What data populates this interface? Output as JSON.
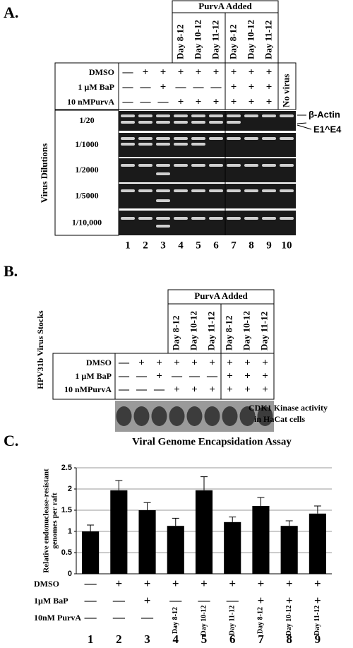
{
  "panel_a": {
    "label": "A.",
    "header": "PurvA Added",
    "days": [
      "Day 8-12",
      "Day 10-12",
      "Day 11-12",
      "Day 8-12",
      "Day 10-12",
      "Day 11-12"
    ],
    "no_virus": "No virus",
    "rows": [
      {
        "label": "DMSO",
        "marks": [
          "—",
          "+",
          "+",
          "+",
          "+",
          "+",
          "+",
          "+",
          "+"
        ]
      },
      {
        "label": "1 µM BaP",
        "marks": [
          "—",
          "—",
          "+",
          "—",
          "—",
          "—",
          "+",
          "+",
          "+"
        ]
      },
      {
        "label": "10 nMPurvA",
        "marks": [
          "—",
          "—",
          "—",
          "+",
          "+",
          "+",
          "+",
          "+",
          "+"
        ]
      }
    ],
    "side_label": "Virus Dilutions",
    "dilutions": [
      "1/20",
      "1/1000",
      "1/2000",
      "1/5000",
      "1/10,000"
    ],
    "annotations": [
      "β-Actin",
      "E1^E4"
    ],
    "lanes": [
      "1",
      "2",
      "3",
      "4",
      "5",
      "6",
      "7",
      "8",
      "9",
      "10"
    ]
  },
  "panel_b": {
    "label": "B.",
    "header": "PurvA Added",
    "days": [
      "Day 8-12",
      "Day 10-12",
      "Day 11-12",
      "Day 8-12",
      "Day 10-12",
      "Day 11-12"
    ],
    "rows": [
      {
        "label": "DMSO",
        "marks": [
          "—",
          "+",
          "+",
          "+",
          "+",
          "+",
          "+",
          "+",
          "+"
        ]
      },
      {
        "label": "1 µM BaP",
        "marks": [
          "—",
          "—",
          "+",
          "—",
          "—",
          "—",
          "+",
          "+",
          "+"
        ]
      },
      {
        "label": "10 nMPurvA",
        "marks": [
          "—",
          "—",
          "—",
          "+",
          "+",
          "+",
          "+",
          "+",
          "+"
        ]
      }
    ],
    "side_label": "HPV31b Virus Stocks",
    "caption": [
      "CDK1 Kinase activity",
      "in HaCat cells"
    ]
  },
  "chart_data": {
    "type": "bar",
    "label": "C.",
    "title": "Viral Genome Encapsidation Assay",
    "ylabel": [
      "Relative endonuclease-resistant",
      "genomes per raft"
    ],
    "categories": [
      "1",
      "2",
      "3",
      "4",
      "5",
      "6",
      "7",
      "8",
      "9"
    ],
    "values": [
      1.0,
      1.97,
      1.5,
      1.13,
      1.97,
      1.22,
      1.6,
      1.13,
      1.42
    ],
    "errors": [
      0.15,
      0.23,
      0.18,
      0.18,
      0.32,
      0.12,
      0.2,
      0.12,
      0.18
    ],
    "color": "#000000",
    "conditions": [
      {
        "label": "DMSO",
        "marks": [
          "—",
          "+",
          "+",
          "+",
          "+",
          "+",
          "+",
          "+",
          "+"
        ]
      },
      {
        "label": "1µM BaP",
        "marks": [
          "—",
          "—",
          "+",
          "—",
          "—",
          "—",
          "+",
          "+",
          "+"
        ]
      },
      {
        "label": "10nM PurvA",
        "marks": [
          "—",
          "—",
          "—",
          "Day 8-12",
          "Day 10-12",
          "Day 11-12",
          "Day 8-12",
          "Day 10-12",
          "Day 11-12"
        ]
      }
    ],
    "ylim": [
      0,
      2.5
    ],
    "yticks": [
      0,
      0.5,
      1,
      1.5,
      2,
      2.5
    ],
    "grid": true
  }
}
